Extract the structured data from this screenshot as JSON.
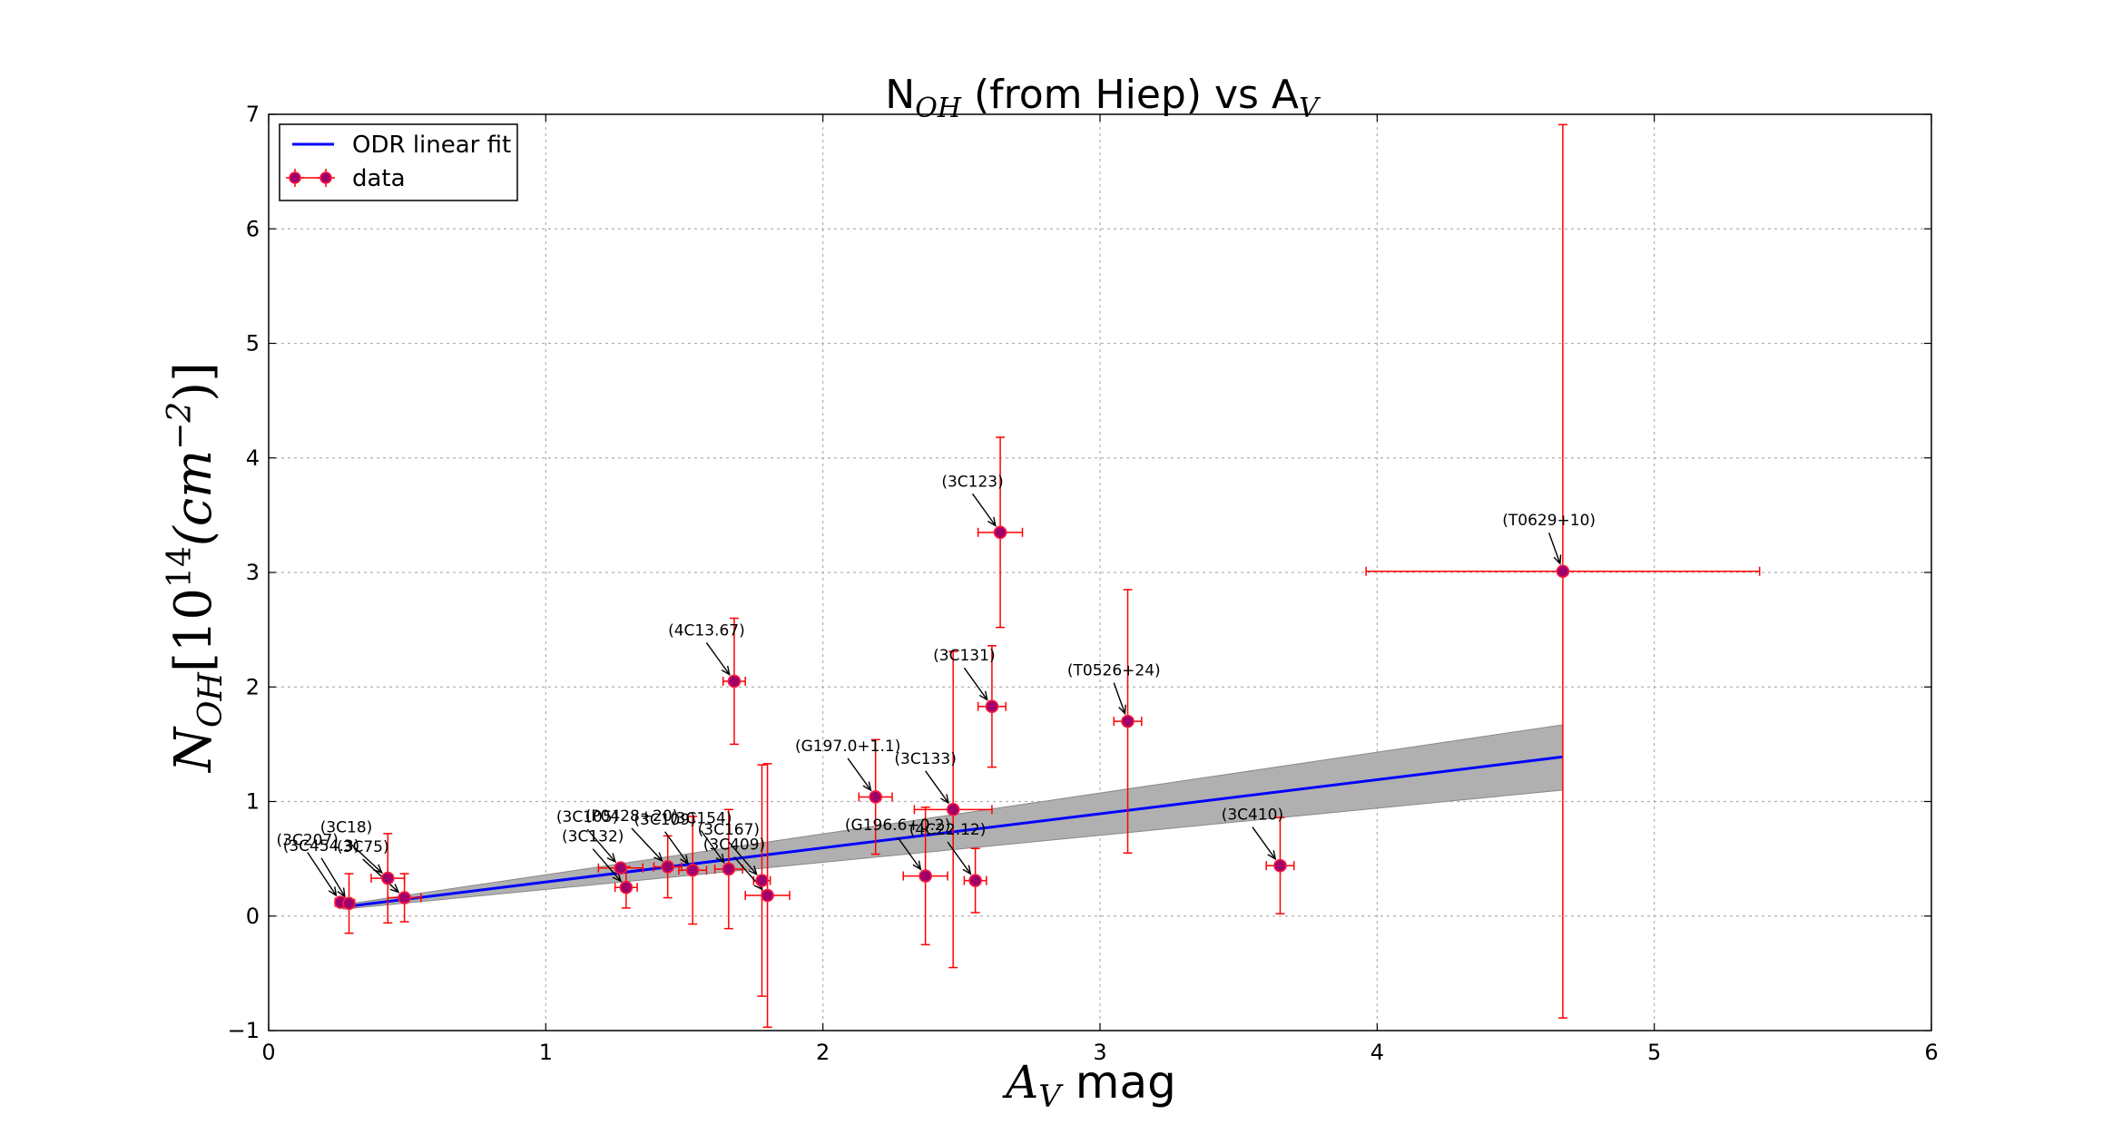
{
  "chart_data": {
    "type": "scatter",
    "title": {
      "main": "N",
      "main_sub": "OH",
      "mid": " (from Hiep) vs A",
      "mid_sub": "V"
    },
    "xlabel": {
      "sym": "A",
      "sub": "V",
      "rest": " mag"
    },
    "ylabel": {
      "sym": "N",
      "sub": "OH",
      "bracket_open": "[10",
      "exp": "14",
      "mid": "(cm",
      "exp2": "−2",
      "bracket_close": ")]"
    },
    "xlim": [
      0,
      6
    ],
    "ylim": [
      -1,
      7
    ],
    "xticks": [
      0,
      1,
      2,
      3,
      4,
      5,
      6
    ],
    "yticks": [
      -1,
      0,
      1,
      2,
      3,
      4,
      5,
      6,
      7
    ],
    "xtick_labels": [
      "0",
      "1",
      "2",
      "3",
      "4",
      "5",
      "6"
    ],
    "ytick_labels": [
      "−1",
      "0",
      "1",
      "2",
      "3",
      "4",
      "5",
      "6",
      "7"
    ],
    "grid": true,
    "legend": {
      "placement": "top-left",
      "entries": [
        {
          "label": "ODR linear fit",
          "kind": "line"
        },
        {
          "label": "data",
          "kind": "errorbar-marker"
        }
      ]
    },
    "colors": {
      "fit_line": "#0000ff",
      "band_fill": "#b0b0b0",
      "band_edge": "#888888",
      "errorbar": "#ff0000",
      "marker_face": "#a0006a",
      "marker_edge": "#ff1a3c",
      "grid": "#b0b0b0"
    },
    "fit": {
      "x": [
        0.27,
        4.67
      ],
      "y": [
        0.08,
        1.39
      ],
      "band_low": [
        0.06,
        1.1
      ],
      "band_high": [
        0.1,
        1.67
      ]
    },
    "points": [
      {
        "label": "(3C207)",
        "x": 0.26,
        "y": 0.12,
        "xerr": 0.02,
        "yerr": 0.02,
        "ann_dx": -0.12,
        "ann_dy": 0.5
      },
      {
        "label": "(3C454.3)",
        "x": 0.29,
        "y": 0.11,
        "xerr": 0.02,
        "yerr": 0.26,
        "ann_dx": -0.1,
        "ann_dy": 0.46
      },
      {
        "label": "(3C18)",
        "x": 0.43,
        "y": 0.33,
        "xerr": 0.06,
        "yerr": 0.39,
        "ann_dx": -0.15,
        "ann_dy": 0.4
      },
      {
        "label": "(3C75)",
        "x": 0.49,
        "y": 0.16,
        "xerr": 0.06,
        "yerr": 0.21,
        "ann_dx": -0.15,
        "ann_dy": 0.4
      },
      {
        "label": "(3C105)",
        "x": 1.27,
        "y": 0.42,
        "xerr": 0.08,
        "yerr": 0.02,
        "ann_dx": -0.12,
        "ann_dy": 0.4
      },
      {
        "label": "(3C132)",
        "x": 1.29,
        "y": 0.25,
        "xerr": 0.04,
        "yerr": 0.18,
        "ann_dx": -0.12,
        "ann_dy": 0.4
      },
      {
        "label": "(P0428+20)",
        "x": 1.44,
        "y": 0.43,
        "xerr": 0.05,
        "yerr": 0.27,
        "ann_dx": -0.13,
        "ann_dy": 0.4
      },
      {
        "label": "(3C109)",
        "x": 1.53,
        "y": 0.4,
        "xerr": 0.05,
        "yerr": 0.47,
        "ann_dx": -0.1,
        "ann_dy": 0.4
      },
      {
        "label": "(3C154)",
        "x": 1.66,
        "y": 0.41,
        "xerr": 0.05,
        "yerr": 0.52,
        "ann_dx": -0.1,
        "ann_dy": 0.4
      },
      {
        "label": "(3C167)",
        "x": 1.78,
        "y": 0.31,
        "xerr": 0.03,
        "yerr": 1.01,
        "ann_dx": -0.12,
        "ann_dy": 0.4
      },
      {
        "label": "(3C409)",
        "x": 1.8,
        "y": 0.18,
        "xerr": 0.08,
        "yerr": 1.15,
        "ann_dx": -0.12,
        "ann_dy": 0.4
      },
      {
        "label": "(4C13.67)",
        "x": 1.68,
        "y": 2.05,
        "xerr": 0.04,
        "yerr": 0.55,
        "ann_dx": -0.1,
        "ann_dy": 0.4
      },
      {
        "label": "(G197.0+1.1)",
        "x": 2.19,
        "y": 1.04,
        "xerr": 0.06,
        "yerr": 0.5,
        "ann_dx": -0.1,
        "ann_dy": 0.4
      },
      {
        "label": "(G196.6+0.2)",
        "x": 2.37,
        "y": 0.35,
        "xerr": 0.08,
        "yerr": 0.6,
        "ann_dx": -0.1,
        "ann_dy": 0.4
      },
      {
        "label": "(3C133)",
        "x": 2.47,
        "y": 0.93,
        "xerr": 0.14,
        "yerr": 1.38,
        "ann_dx": -0.1,
        "ann_dy": 0.4
      },
      {
        "label": "(4C22.12)",
        "x": 2.55,
        "y": 0.31,
        "xerr": 0.04,
        "yerr": 0.28,
        "ann_dx": -0.1,
        "ann_dy": 0.4
      },
      {
        "label": "(3C131)",
        "x": 2.61,
        "y": 1.83,
        "xerr": 0.05,
        "yerr": 0.53,
        "ann_dx": -0.1,
        "ann_dy": 0.4
      },
      {
        "label": "(3C123)",
        "x": 2.64,
        "y": 3.35,
        "xerr": 0.08,
        "yerr": 0.83,
        "ann_dx": -0.1,
        "ann_dy": 0.4
      },
      {
        "label": "(T0526+24)",
        "x": 3.1,
        "y": 1.7,
        "xerr": 0.05,
        "yerr": 1.15,
        "ann_dx": -0.05,
        "ann_dy": 0.4
      },
      {
        "label": "(3C410)",
        "x": 3.65,
        "y": 0.44,
        "xerr": 0.05,
        "yerr": 0.42,
        "ann_dx": -0.1,
        "ann_dy": 0.4
      },
      {
        "label": "(T0629+10)",
        "x": 4.67,
        "y": 3.01,
        "xerr": 0.71,
        "yerr": 3.9,
        "ann_dx": -0.05,
        "ann_dy": 0.4
      }
    ]
  }
}
